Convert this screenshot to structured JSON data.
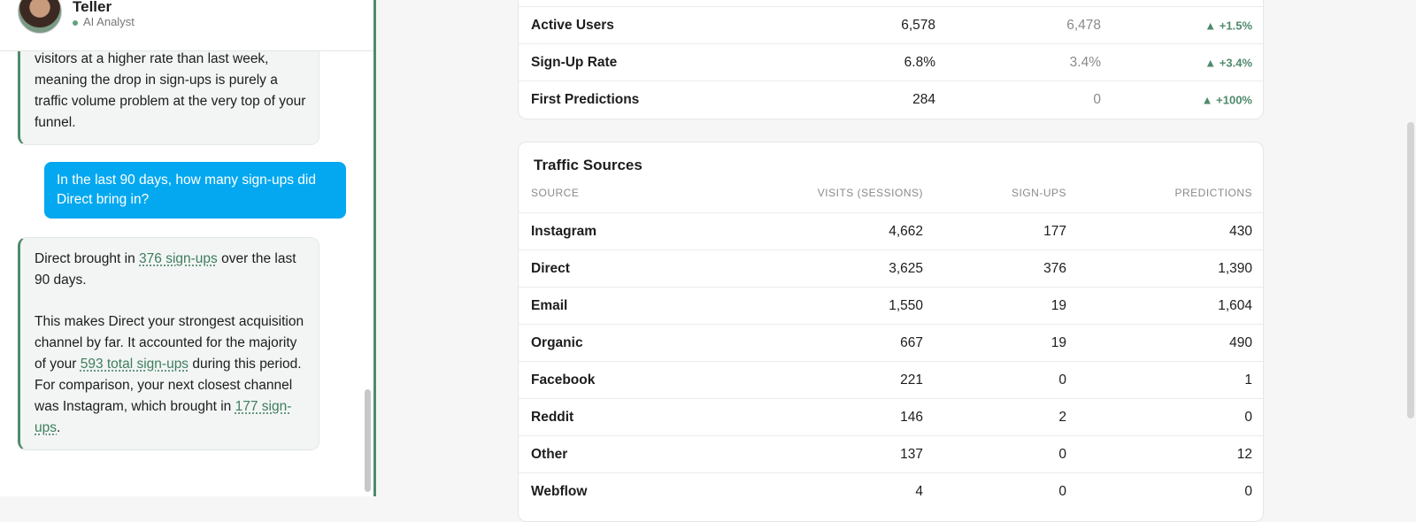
{
  "assistant": {
    "name": "Teller",
    "status": "AI Analyst"
  },
  "messages": [
    {
      "role": "assistant",
      "paragraphs": [
        [
          {
            "text": "visitors at a higher rate than last week, meaning the drop in sign-ups is purely a traffic volume problem at the very top of your funnel."
          }
        ]
      ]
    },
    {
      "role": "user",
      "paragraphs": [
        [
          {
            "text": "In the last 90 days, how many sign-ups did Direct bring in?"
          }
        ]
      ]
    },
    {
      "role": "assistant",
      "paragraphs": [
        [
          {
            "text": "Direct brought in "
          },
          {
            "text": "376 sign-ups",
            "link": true
          },
          {
            "text": " over the last 90 days."
          }
        ],
        [
          {
            "text": "This makes Direct your strongest acquisition channel by far. It accounted for the majority of your "
          },
          {
            "text": "593 total sign-ups",
            "link": true
          },
          {
            "text": " during this period. For comparison, your next closest channel was Instagram, which brought in "
          },
          {
            "text": "177 sign-ups",
            "link": true
          },
          {
            "text": "."
          }
        ]
      ]
    }
  ],
  "metrics": {
    "rows": [
      [
        "Active Users",
        "6,578",
        "6,478",
        "▲ +1.5%"
      ],
      [
        "Sign-Up Rate",
        "6.8%",
        "3.4%",
        "▲ +3.4%"
      ],
      [
        "First Predictions",
        "284",
        "0",
        "▲ +100%"
      ]
    ]
  },
  "traffic": {
    "title": "Traffic Sources",
    "columns": [
      "SOURCE",
      "VISITS (SESSIONS)",
      "SIGN-UPS",
      "PREDICTIONS"
    ],
    "rows": [
      [
        "Instagram",
        "4,662",
        "177",
        "430"
      ],
      [
        "Direct",
        "3,625",
        "376",
        "1,390"
      ],
      [
        "Email",
        "1,550",
        "19",
        "1,604"
      ],
      [
        "Organic",
        "667",
        "19",
        "490"
      ],
      [
        "Facebook",
        "221",
        "0",
        "1"
      ],
      [
        "Reddit",
        "146",
        "2",
        "0"
      ],
      [
        "Other",
        "137",
        "0",
        "12"
      ],
      [
        "Webflow",
        "4",
        "0",
        "0"
      ]
    ]
  }
}
